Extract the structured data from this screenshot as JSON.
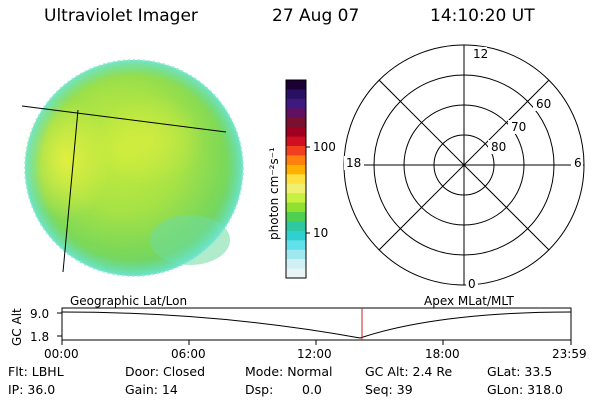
{
  "header": {
    "instrument": "Ultraviolet Imager",
    "date": "27 Aug 07",
    "time": "14:10:20 UT"
  },
  "colorbar": {
    "unit_label": "photon cm⁻²s⁻¹",
    "tick_labels": [
      "100",
      "10"
    ],
    "colors": [
      "#1a0033",
      "#2a1060",
      "#3c1a80",
      "#601060",
      "#7a1030",
      "#a00020",
      "#d01020",
      "#f04020",
      "#ff8010",
      "#ffb000",
      "#ffe040",
      "#f0f070",
      "#c8f040",
      "#90e030",
      "#50d050",
      "#30c8a0",
      "#30d0d0",
      "#60e0e8",
      "#a0e8f0",
      "#d0f0f4",
      "#e8f4f6"
    ]
  },
  "polar_plot": {
    "mlt_labels": [
      "12",
      "18",
      "6",
      "0"
    ],
    "lat_labels": [
      "60",
      "70",
      "80"
    ]
  },
  "timeline": {
    "axis_label": "GC Alt",
    "y_labels": [
      "9.0",
      "1.8"
    ],
    "left_title": "Geographic Lat/Lon",
    "right_title": "Apex MLat/MLT",
    "time_ticks": [
      "00:00",
      "06:00",
      "12:00",
      "18:00",
      "23:59"
    ],
    "marker_color": "#cc2222"
  },
  "status": {
    "filter": "Flt: LBHL",
    "ip": "IP: 36.0",
    "door": "Door: Closed",
    "gain": "Gain: 14",
    "mode": "Mode: Normal",
    "dsp_label": "Dsp:",
    "dsp_value": "0.0",
    "gc_alt": "GC Alt: 2.4 Re",
    "seq": "Seq: 39",
    "glat": "GLat: 33.5",
    "glon": "GLon: 318.0"
  }
}
